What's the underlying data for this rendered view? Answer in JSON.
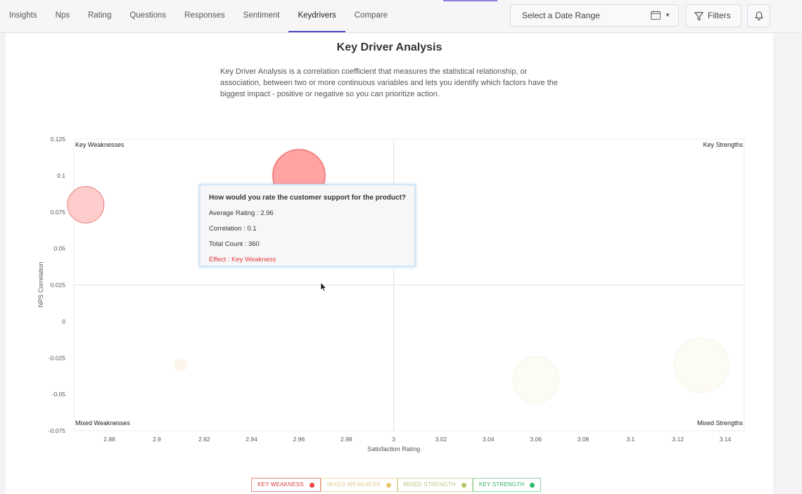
{
  "nav": {
    "tabs": [
      "Insights",
      "Nps",
      "Rating",
      "Questions",
      "Responses",
      "Sentiment",
      "Keydrivers",
      "Compare"
    ],
    "active": "Keydrivers",
    "date_range_placeholder": "Select a Date Range",
    "filters_label": "Filters"
  },
  "page": {
    "title": "Key Driver Analysis",
    "description": "Key Driver Analysis is a correlation coefficient that measures the statistical relationship, or association, between two or more continuous variables and lets you identify which factors have the biggest impact - positive or negative so you can prioritize action."
  },
  "tooltip": {
    "question": "How would you rate the customer support for the product?",
    "average_rating": "Average Rating : 2.96",
    "correlation": "Correlation : 0.1",
    "total_count": "Total Count : 360",
    "effect": "Effect : Key Weakness"
  },
  "legend": [
    {
      "label": "KEY WEAKNESS",
      "color": "#e84545",
      "border": "#e88a8a",
      "text": "#d94040"
    },
    {
      "label": "MIXED WEAKNESS",
      "color": "#e8c870",
      "border": "#ecd9a6",
      "text": "#e2c98e"
    },
    {
      "label": "MIXED STRENGTH",
      "color": "#b9c96a",
      "border": "#cfd9a6",
      "text": "#b8c67e"
    },
    {
      "label": "KEY STRENGTH",
      "color": "#2bbf6a",
      "border": "#8ed6a6",
      "text": "#35b56c"
    }
  ],
  "chart_data": {
    "type": "scatter",
    "xlabel": "Satisfaction Rating",
    "ylabel": "NPS Correlation",
    "xlim": [
      2.865,
      3.148
    ],
    "ylim": [
      -0.075,
      0.125
    ],
    "x_ticks": [
      2.88,
      2.9,
      2.92,
      2.94,
      2.96,
      2.98,
      3,
      3.02,
      3.04,
      3.06,
      3.08,
      3.1,
      3.12,
      3.14
    ],
    "y_ticks": [
      0.125,
      0.1,
      0.075,
      0.05,
      0.025,
      0,
      -0.025,
      -0.05,
      -0.075
    ],
    "x_divider": 3,
    "y_divider": 0.025,
    "quadrant_labels": {
      "top_left": "Key Weaknesses",
      "top_right": "Key Strengths",
      "bottom_left": "Mixed Weaknesses",
      "bottom_right": "Mixed Strengths"
    },
    "points": [
      {
        "x": 2.87,
        "y": 0.08,
        "size": 26,
        "category": "Key Weakness",
        "fill": "#ffcccc",
        "stroke": "#d66"
      },
      {
        "x": 2.96,
        "y": 0.1,
        "size": 37,
        "category": "Key Weakness",
        "fill": "#ffa3a3",
        "stroke": "#d44",
        "highlighted": true
      },
      {
        "x": 2.91,
        "y": -0.03,
        "size": 8,
        "category": "Mixed Weakness",
        "fill": "#fdf6ec",
        "stroke": "#f6ead6"
      },
      {
        "x": 3.06,
        "y": -0.04,
        "size": 33,
        "category": "Mixed Strength",
        "fill": "#fdfcf4",
        "stroke": "#f4f1e2"
      },
      {
        "x": 3.13,
        "y": -0.03,
        "size": 39,
        "category": "Mixed Strength",
        "fill": "#fdfcf4",
        "stroke": "#f4f1e2"
      }
    ]
  }
}
